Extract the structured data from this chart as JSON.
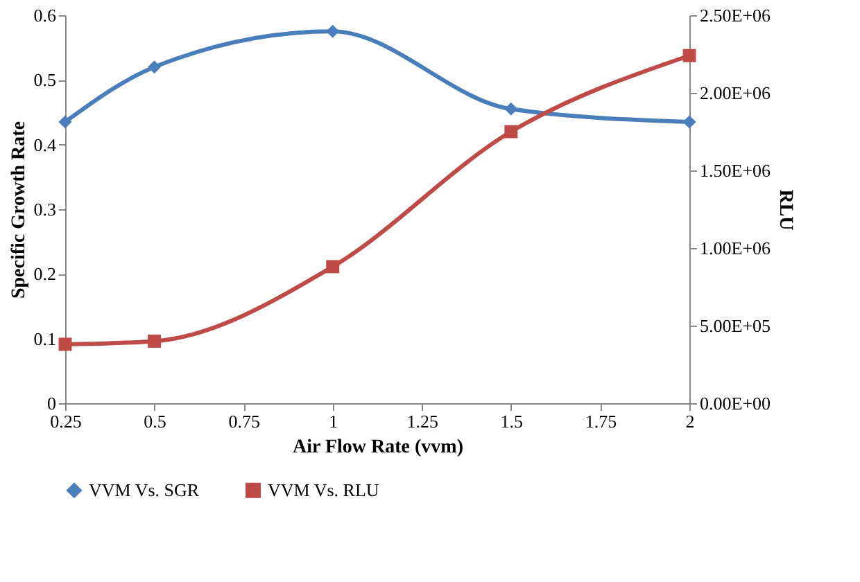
{
  "chart_data": {
    "type": "line",
    "xlabel": "Air Flow Rate (vvm)",
    "ylabel": "Specific Growth Rate",
    "y2label": "RLU",
    "x": [
      0.25,
      0.5,
      1,
      1.5,
      2
    ],
    "series": [
      {
        "name": "VVM Vs. SGR",
        "color": "#4a7ebb",
        "marker": "diamond",
        "values": [
          0.435,
          0.52,
          0.575,
          0.455,
          0.435
        ]
      },
      {
        "name": "VVM Vs. RLU",
        "color": "#be4b48",
        "marker": "square",
        "axis": "y2",
        "values": [
          380000,
          400000,
          880000,
          1750000,
          2240000
        ]
      }
    ],
    "xlim": [
      0.25,
      2
    ],
    "xticks": [
      0.25,
      0.5,
      0.75,
      1,
      1.25,
      1.5,
      1.75,
      2
    ],
    "ylim": [
      0,
      0.6
    ],
    "yticks": [
      0,
      0.1,
      0.2,
      0.3,
      0.4,
      0.5,
      0.6
    ],
    "y2lim": [
      0,
      2500000
    ],
    "y2ticks": [
      {
        "value": 0,
        "label": "0.00E+00"
      },
      {
        "value": 500000,
        "label": "5.00E+05"
      },
      {
        "value": 1000000,
        "label": "1.00E+06"
      },
      {
        "value": 1500000,
        "label": "1.50E+06"
      },
      {
        "value": 2000000,
        "label": "2.00E+06"
      },
      {
        "value": 2500000,
        "label": "2.50E+06"
      }
    ],
    "grid": false,
    "legend": "bottom"
  }
}
